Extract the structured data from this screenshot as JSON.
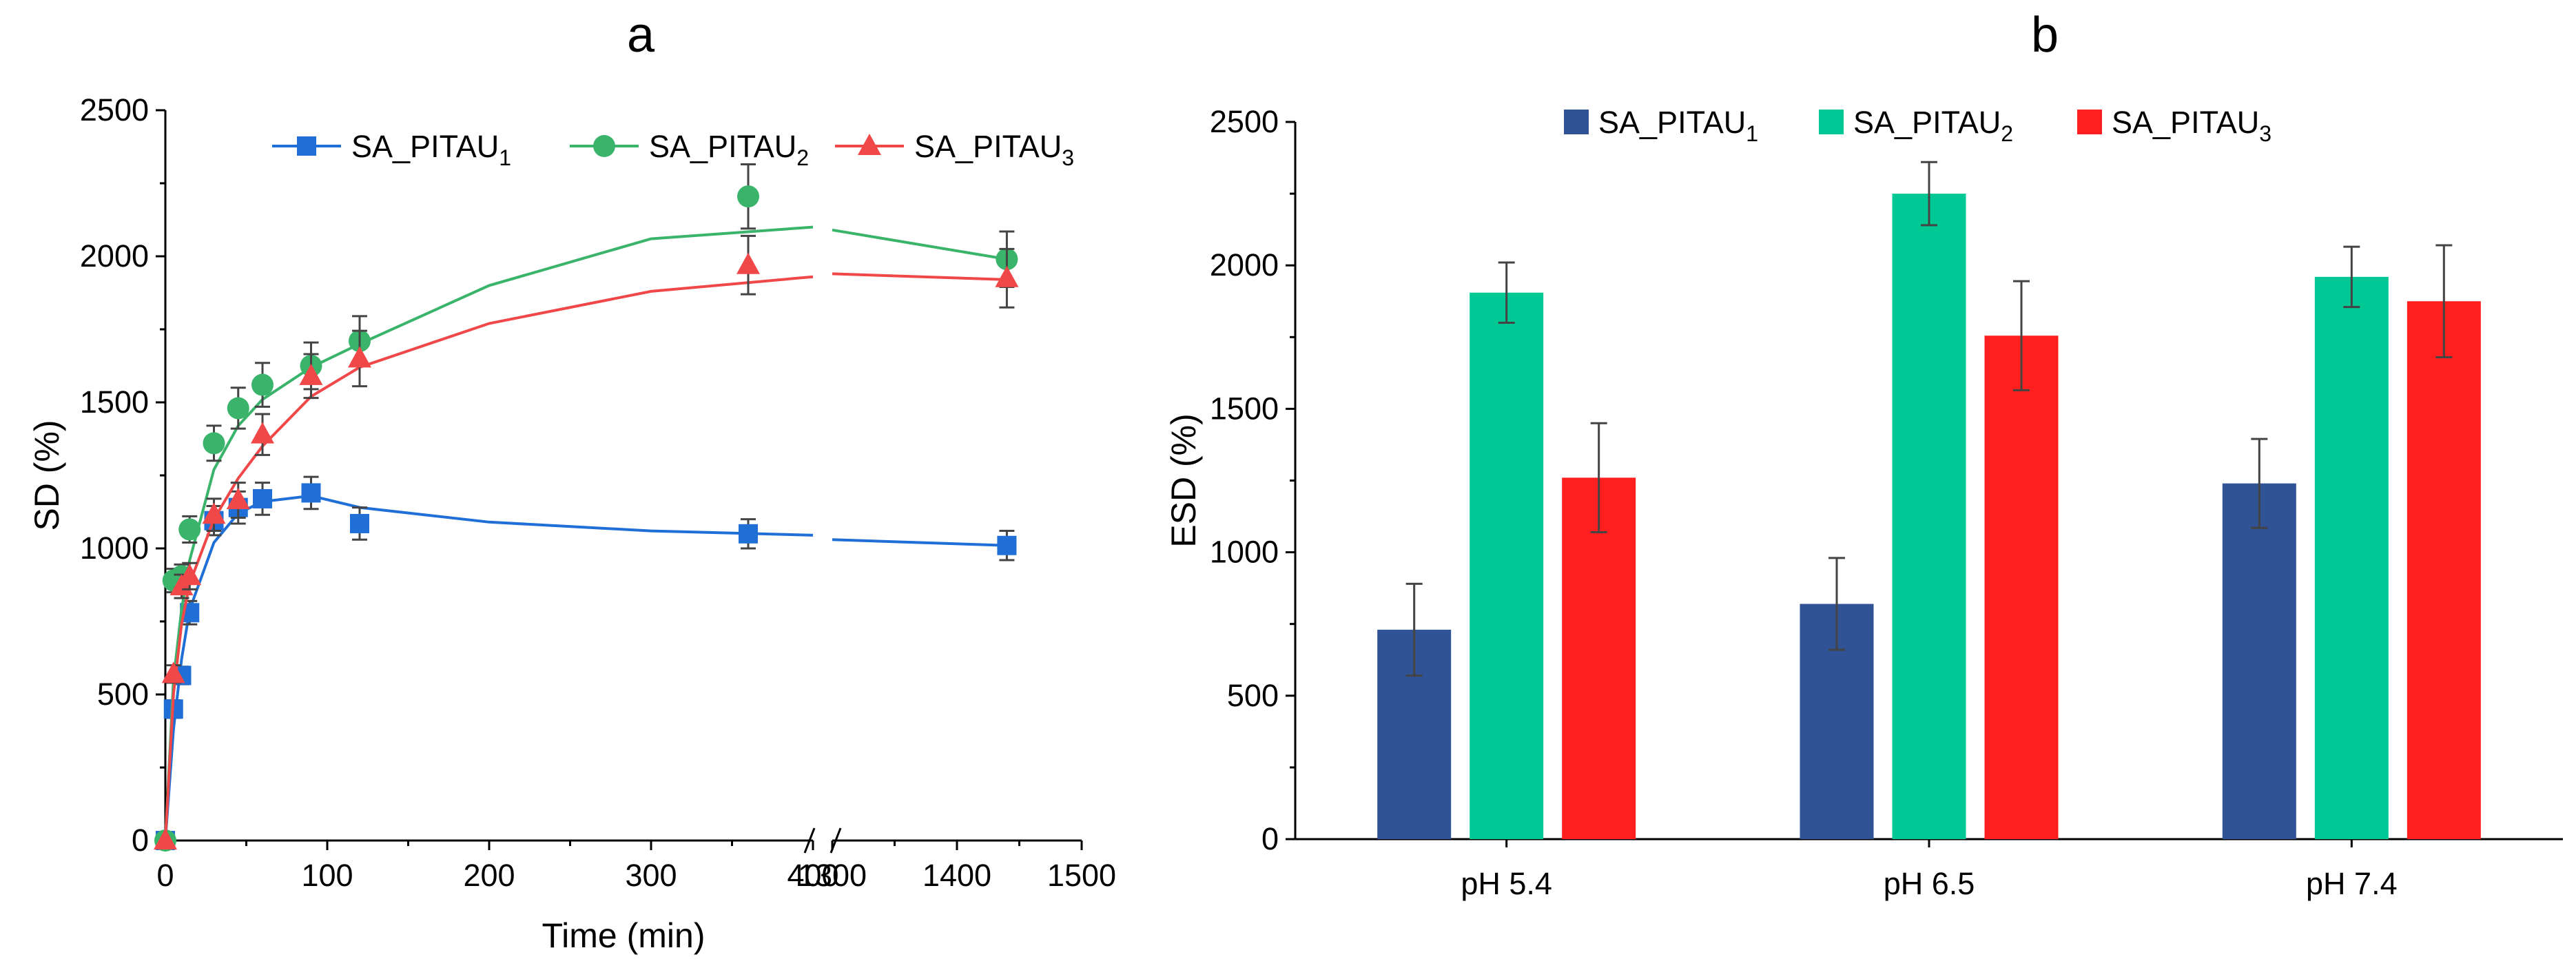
{
  "chart_data": [
    {
      "panel": "a",
      "type": "scatter",
      "title": "a",
      "xlabel": "Time (min)",
      "ylabel": "SD (%)",
      "xlim": [
        0,
        1500
      ],
      "ylim": [
        0,
        2500
      ],
      "x_break": [
        400,
        1300
      ],
      "xticks": [
        0,
        100,
        200,
        300,
        400,
        1300,
        1400,
        1500
      ],
      "yticks": [
        0,
        500,
        1000,
        1500,
        2000,
        2500
      ],
      "legend_position": "top-right",
      "series": [
        {
          "name": "SA_PITAU",
          "subscript": "1",
          "color": "#1f6fd6",
          "marker": "square",
          "x": [
            0,
            5,
            10,
            15,
            30,
            45,
            60,
            90,
            120,
            360,
            1440
          ],
          "y": [
            0,
            450,
            565,
            780,
            1095,
            1140,
            1170,
            1190,
            1085,
            1050,
            1010
          ],
          "err": [
            0,
            30,
            30,
            40,
            50,
            55,
            55,
            55,
            55,
            50,
            50
          ],
          "fit_x": [
            0,
            5,
            10,
            15,
            30,
            45,
            60,
            90,
            120,
            200,
            300,
            400,
            1300,
            1440
          ],
          "fit_y": [
            0,
            380,
            620,
            790,
            1020,
            1120,
            1160,
            1180,
            1140,
            1090,
            1060,
            1045,
            1030,
            1010
          ]
        },
        {
          "name": "SA_PITAU",
          "subscript": "2",
          "color": "#3ab46a",
          "marker": "circle",
          "x": [
            0,
            5,
            10,
            15,
            30,
            45,
            60,
            90,
            120,
            360,
            1440
          ],
          "y": [
            0,
            890,
            905,
            1065,
            1360,
            1480,
            1560,
            1625,
            1710,
            2205,
            1990
          ],
          "err": [
            0,
            40,
            40,
            45,
            60,
            70,
            75,
            80,
            85,
            110,
            95
          ],
          "fit_x": [
            0,
            5,
            10,
            15,
            30,
            45,
            60,
            90,
            120,
            200,
            300,
            400,
            1300,
            1440
          ],
          "fit_y": [
            0,
            550,
            790,
            960,
            1270,
            1420,
            1510,
            1620,
            1700,
            1900,
            2060,
            2100,
            2090,
            1990
          ]
        },
        {
          "name": "SA_PITAU",
          "subscript": "3",
          "color": "#f04848",
          "marker": "triangle",
          "x": [
            0,
            5,
            10,
            15,
            30,
            45,
            60,
            90,
            120,
            360,
            1440
          ],
          "y": [
            0,
            570,
            870,
            905,
            1115,
            1165,
            1390,
            1590,
            1650,
            1970,
            1925
          ],
          "err": [
            0,
            30,
            40,
            45,
            55,
            60,
            70,
            75,
            95,
            100,
            100
          ],
          "fit_x": [
            0,
            5,
            10,
            15,
            30,
            45,
            60,
            90,
            120,
            200,
            300,
            400,
            1300,
            1440
          ],
          "fit_y": [
            0,
            500,
            740,
            880,
            1100,
            1240,
            1350,
            1520,
            1620,
            1770,
            1880,
            1930,
            1940,
            1920
          ]
        }
      ]
    },
    {
      "panel": "b",
      "type": "bar",
      "title": "b",
      "xlabel": "",
      "ylabel": "ESD (%)",
      "ylim": [
        0,
        2500
      ],
      "yticks": [
        0,
        500,
        1000,
        1500,
        2000,
        2500
      ],
      "categories": [
        "pH 5.4",
        "pH 6.5",
        "pH 7.4"
      ],
      "legend_position": "top",
      "series": [
        {
          "name": "SA_PITAU",
          "subscript": "1",
          "color": "#2f5394",
          "values": [
            730,
            820,
            1240
          ],
          "err": [
            160,
            160,
            155
          ]
        },
        {
          "name": "SA_PITAU",
          "subscript": "2",
          "color": "#00c895",
          "values": [
            1905,
            2250,
            1960
          ],
          "err": [
            105,
            110,
            105
          ]
        },
        {
          "name": "SA_PITAU",
          "subscript": "3",
          "color": "#ff1f1f",
          "values": [
            1260,
            1755,
            1875
          ],
          "err": [
            190,
            190,
            195
          ]
        }
      ]
    }
  ]
}
